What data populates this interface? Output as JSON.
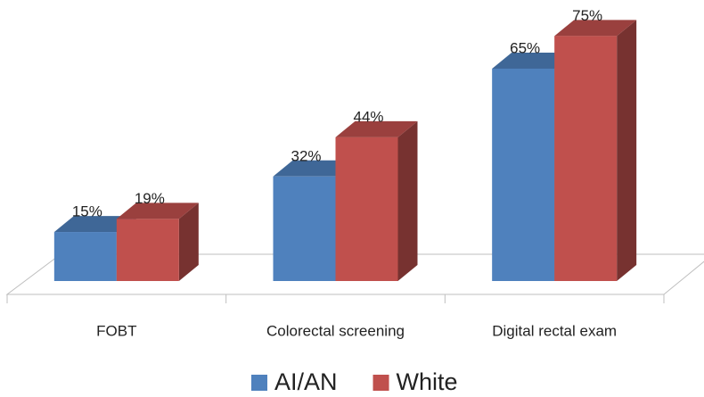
{
  "chart_data": {
    "type": "bar3d",
    "categories": [
      "FOBT",
      "Colorectal screening",
      "Digital rectal exam"
    ],
    "series": [
      {
        "name": "AI/AN",
        "color": "#4f81bd",
        "values": [
          15,
          32,
          65
        ],
        "value_labels": [
          "15%",
          "32%",
          "65%"
        ]
      },
      {
        "name": "White",
        "color": "#c0504d",
        "values": [
          19,
          44,
          75
        ],
        "value_labels": [
          "19%",
          "44%",
          "75%"
        ]
      }
    ],
    "ylim": [
      0,
      80
    ],
    "legend": "bottom"
  }
}
